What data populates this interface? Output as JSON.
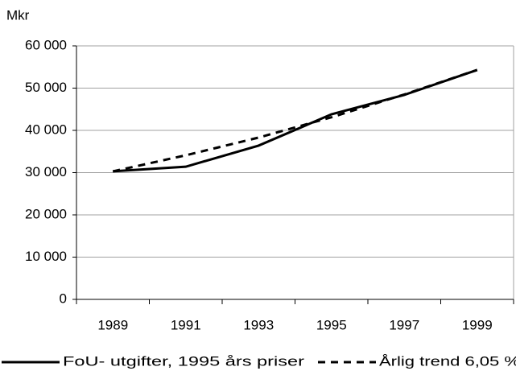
{
  "chart_data": {
    "type": "line",
    "y_axis_label": "Mkr",
    "categories": [
      "1989",
      "1991",
      "1993",
      "1995",
      "1997",
      "1999"
    ],
    "series": [
      {
        "name": "FoU- utgifter, 1995 års priser",
        "color": "#000000",
        "style": "solid",
        "values": [
          30300,
          31400,
          36400,
          43800,
          48400,
          54300
        ]
      },
      {
        "name": "Årlig trend 6,05 %",
        "color": "#000000",
        "style": "dashed",
        "values": [
          30300,
          34100,
          38300,
          43100,
          48500,
          54300
        ]
      }
    ],
    "ylim": [
      0,
      60000
    ],
    "yticks": [
      0,
      {
        "value": 10000,
        "label": "10 000"
      },
      {
        "value": 20000,
        "label": "20 000"
      },
      {
        "value": 30000,
        "label": "30 000"
      },
      {
        "value": 40000,
        "label": "40 000"
      },
      {
        "value": 50000,
        "label": "50 000"
      },
      {
        "value": 60000,
        "label": "60 000"
      }
    ],
    "grid": true,
    "legend": "bottom"
  }
}
